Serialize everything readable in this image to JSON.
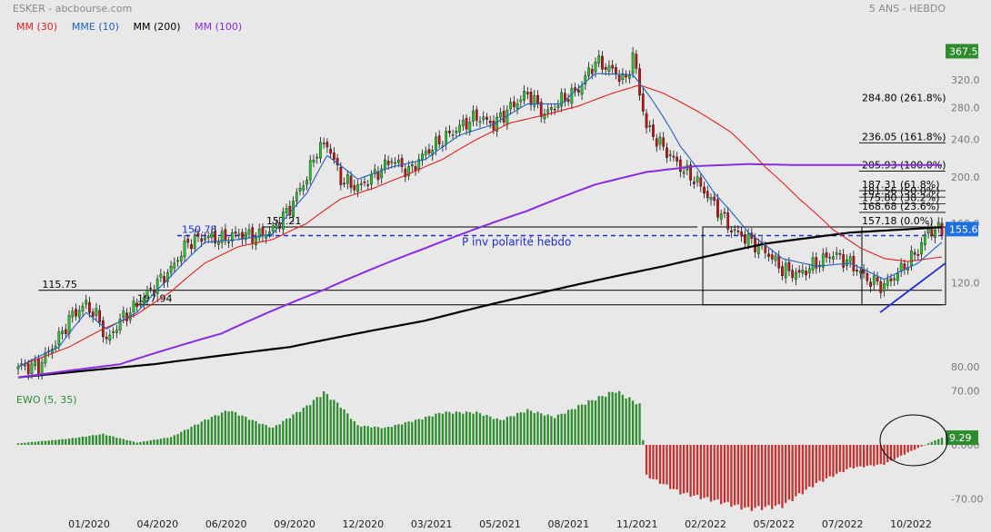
{
  "header": {
    "title": "ESKER - abcbourse.com",
    "period": "5 ANS - HEBDO",
    "legend": [
      {
        "label": "MM (30)",
        "color": "#e02020"
      },
      {
        "label": "MME (10)",
        "color": "#2060c0"
      },
      {
        "label": "MM (200)",
        "color": "#000000"
      },
      {
        "label": "MM (100)",
        "color": "#8a2be2"
      }
    ]
  },
  "colors": {
    "up": "#22cc22",
    "down": "#cc1111",
    "ewo_pos": "#2e8b2e",
    "ewo_neg": "#c83030",
    "grid_text": "#777777",
    "last_price_box": "#1e6fe0",
    "top_price_box": "#2e8b2e"
  },
  "chart_data": [
    {
      "type": "candlestick",
      "name": "price",
      "x_ticks": [
        "01/2020",
        "04/2020",
        "06/2020",
        "09/2020",
        "12/2020",
        "03/2021",
        "05/2021",
        "08/2021",
        "11/2021",
        "02/2022",
        "05/2022",
        "07/2022",
        "10/2022"
      ],
      "y_ticks": [
        "80.00",
        "120.0",
        "160.0",
        "200.0",
        "240.0",
        "280.0",
        "320.0"
      ],
      "ylim": [
        72,
        378
      ],
      "scale": "log",
      "price_badge_top": "367.5",
      "price_badge_last": "155.6",
      "close_series_anchors": [
        [
          0,
          80
        ],
        [
          6,
          80
        ],
        [
          12,
          92
        ],
        [
          16,
          103
        ],
        [
          20,
          108
        ],
        [
          24,
          100
        ],
        [
          26,
          90
        ],
        [
          30,
          100
        ],
        [
          35,
          108
        ],
        [
          40,
          118
        ],
        [
          45,
          128
        ],
        [
          50,
          146
        ],
        [
          55,
          150
        ],
        [
          60,
          148
        ],
        [
          65,
          152
        ],
        [
          70,
          150
        ],
        [
          75,
          155
        ],
        [
          80,
          172
        ],
        [
          85,
          200
        ],
        [
          88,
          228
        ],
        [
          91,
          235
        ],
        [
          95,
          198
        ],
        [
          100,
          190
        ],
        [
          105,
          202
        ],
        [
          110,
          218
        ],
        [
          115,
          205
        ],
        [
          120,
          225
        ],
        [
          125,
          240
        ],
        [
          130,
          255
        ],
        [
          135,
          268
        ],
        [
          140,
          258
        ],
        [
          145,
          280
        ],
        [
          150,
          300
        ],
        [
          155,
          270
        ],
        [
          160,
          290
        ],
        [
          165,
          305
        ],
        [
          170,
          350
        ],
        [
          175,
          335
        ],
        [
          179,
          318
        ],
        [
          181,
          362
        ],
        [
          183,
          300
        ],
        [
          185,
          255
        ],
        [
          190,
          230
        ],
        [
          195,
          210
        ],
        [
          200,
          195
        ],
        [
          205,
          175
        ],
        [
          210,
          155
        ],
        [
          215,
          148
        ],
        [
          220,
          140
        ],
        [
          225,
          128
        ],
        [
          230,
          125
        ],
        [
          235,
          132
        ],
        [
          240,
          138
        ],
        [
          245,
          132
        ],
        [
          250,
          122
        ],
        [
          255,
          118
        ],
        [
          260,
          128
        ],
        [
          265,
          140
        ],
        [
          268,
          155
        ],
        [
          272,
          155
        ]
      ],
      "mme10_anchors": [
        [
          0,
          80
        ],
        [
          12,
          88
        ],
        [
          20,
          104
        ],
        [
          26,
          96
        ],
        [
          35,
          104
        ],
        [
          45,
          124
        ],
        [
          55,
          146
        ],
        [
          65,
          148
        ],
        [
          75,
          152
        ],
        [
          85,
          185
        ],
        [
          91,
          222
        ],
        [
          100,
          198
        ],
        [
          110,
          210
        ],
        [
          120,
          218
        ],
        [
          130,
          245
        ],
        [
          140,
          258
        ],
        [
          150,
          285
        ],
        [
          160,
          285
        ],
        [
          170,
          330
        ],
        [
          181,
          328
        ],
        [
          186,
          295
        ],
        [
          195,
          232
        ],
        [
          205,
          185
        ],
        [
          215,
          153
        ],
        [
          225,
          135
        ],
        [
          235,
          130
        ],
        [
          245,
          132
        ],
        [
          255,
          122
        ],
        [
          265,
          132
        ],
        [
          272,
          146
        ]
      ],
      "mm30_anchors": [
        [
          0,
          80
        ],
        [
          15,
          88
        ],
        [
          25,
          96
        ],
        [
          35,
          103
        ],
        [
          45,
          115
        ],
        [
          55,
          132
        ],
        [
          65,
          143
        ],
        [
          75,
          148
        ],
        [
          85,
          160
        ],
        [
          95,
          180
        ],
        [
          105,
          190
        ],
        [
          115,
          203
        ],
        [
          125,
          218
        ],
        [
          135,
          240
        ],
        [
          145,
          260
        ],
        [
          155,
          270
        ],
        [
          165,
          282
        ],
        [
          175,
          300
        ],
        [
          183,
          312
        ],
        [
          190,
          300
        ],
        [
          200,
          275
        ],
        [
          210,
          248
        ],
        [
          220,
          210
        ],
        [
          230,
          180
        ],
        [
          240,
          155
        ],
        [
          248,
          142
        ],
        [
          255,
          135
        ],
        [
          262,
          133
        ],
        [
          272,
          136
        ]
      ],
      "mm100_anchors": [
        [
          0,
          76
        ],
        [
          30,
          81
        ],
        [
          60,
          94
        ],
        [
          90,
          116
        ],
        [
          120,
          142
        ],
        [
          150,
          170
        ],
        [
          170,
          193
        ],
        [
          185,
          205
        ],
        [
          200,
          211
        ],
        [
          215,
          213
        ],
        [
          230,
          212
        ],
        [
          250,
          212
        ],
        [
          272,
          212
        ]
      ],
      "mm200_anchors": [
        [
          0,
          76
        ],
        [
          40,
          81
        ],
        [
          80,
          88
        ],
        [
          120,
          100
        ],
        [
          160,
          117
        ],
        [
          190,
          130
        ],
        [
          220,
          145
        ],
        [
          245,
          153
        ],
        [
          272,
          157
        ]
      ],
      "horizontal_levels": [
        {
          "label": "157.21",
          "value": 157.21,
          "from": 72,
          "to": 200
        },
        {
          "label": "115.75",
          "value": 115.75,
          "from": 6,
          "to": 272
        },
        {
          "label": "107.94",
          "value": 107.94,
          "from": 34,
          "to": 272
        }
      ],
      "dashed_level": {
        "label": "150.78",
        "value": 150.78
      },
      "annotation": "P inv polarité hebdo",
      "fibonacci": [
        {
          "label": "284.80  (261.8%)",
          "value": 284.8
        },
        {
          "label": "236.05  (161.8%)",
          "value": 236.05
        },
        {
          "label": "205.93  (100.0%)",
          "value": 205.93
        },
        {
          "label": "187.31  (61.8%)",
          "value": 187.31
        },
        {
          "label": "181.56  (50.0%)",
          "value": 181.56
        },
        {
          "label": "175.80  (38.2%)",
          "value": 175.8
        },
        {
          "label": "168.68  (23.6%)",
          "value": 168.68
        },
        {
          "label": "157.18  (0.0%)",
          "value": 157.18
        }
      ]
    },
    {
      "type": "bar",
      "name": "EWO (5, 35)",
      "label": "EWO (5, 35)",
      "y_ticks": [
        "70.00",
        "0.000",
        "-70.00"
      ],
      "ylim": [
        -85,
        85
      ],
      "last_value_badge": "9.29",
      "value_anchors": [
        [
          0,
          2
        ],
        [
          15,
          8
        ],
        [
          25,
          14
        ],
        [
          35,
          3
        ],
        [
          45,
          10
        ],
        [
          55,
          32
        ],
        [
          62,
          45
        ],
        [
          70,
          30
        ],
        [
          75,
          22
        ],
        [
          85,
          50
        ],
        [
          90,
          68
        ],
        [
          95,
          50
        ],
        [
          100,
          25
        ],
        [
          108,
          22
        ],
        [
          118,
          33
        ],
        [
          125,
          42
        ],
        [
          135,
          42
        ],
        [
          142,
          32
        ],
        [
          150,
          45
        ],
        [
          158,
          36
        ],
        [
          168,
          56
        ],
        [
          176,
          70
        ],
        [
          183,
          52
        ],
        [
          185,
          -40
        ],
        [
          195,
          -62
        ],
        [
          205,
          -72
        ],
        [
          215,
          -83
        ],
        [
          225,
          -79
        ],
        [
          235,
          -50
        ],
        [
          245,
          -30
        ],
        [
          255,
          -25
        ],
        [
          262,
          -10
        ],
        [
          268,
          2
        ],
        [
          272,
          9.29
        ]
      ]
    }
  ]
}
